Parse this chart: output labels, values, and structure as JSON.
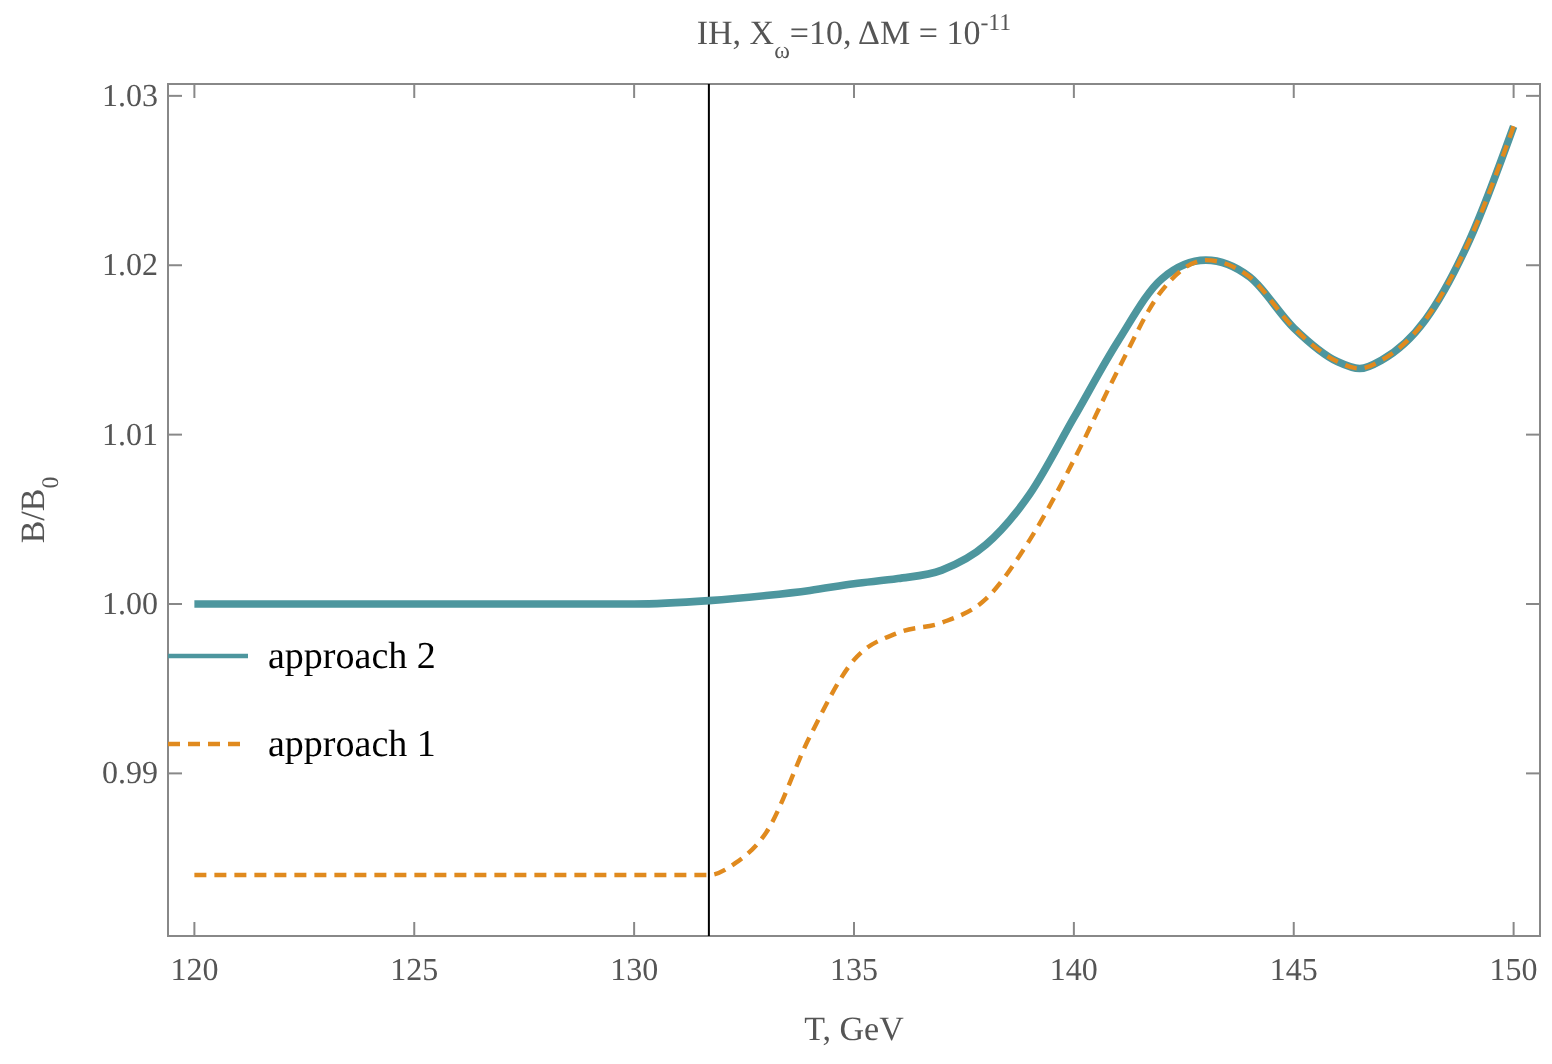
{
  "chart_data": {
    "type": "line",
    "title": "IH, X$_{ω}$=10, ΔM = 10$^{-11}$",
    "xlabel": "T, GeV",
    "ylabel": "B/B$_{0}$",
    "xlim": [
      119.4,
      150.6
    ],
    "ylim": [
      0.9804,
      1.0307
    ],
    "xticks": [
      120,
      125,
      130,
      135,
      140,
      145,
      150
    ],
    "yticks": [
      {
        "value": 0.99,
        "label": "0.99"
      },
      {
        "value": 1,
        "label": "1.00"
      },
      {
        "value": 1.01,
        "label": "1.01"
      },
      {
        "value": 1.02,
        "label": "1.02"
      },
      {
        "value": 1.03,
        "label": "1.03"
      }
    ],
    "legend": "bottom left",
    "grid": false,
    "ref_lines": [
      {
        "axis": "x",
        "value": 131.7,
        "color": "#000000",
        "line_style": "solid"
      }
    ],
    "series": [
      {
        "name": "approach 2",
        "color": "#4d969e",
        "line_style": "solid",
        "x": [
          120,
          125,
          130,
          131.7,
          133,
          134,
          135,
          136,
          137,
          138,
          139,
          140,
          141,
          142,
          143,
          144,
          145,
          146,
          146.5,
          147,
          148,
          149,
          150
        ],
        "values": [
          1.0,
          1.0,
          1.0,
          1.0002,
          1.0005,
          1.0008,
          1.0012,
          1.0015,
          1.002,
          1.0035,
          1.0065,
          1.011,
          1.0155,
          1.0192,
          1.0203,
          1.0193,
          1.0163,
          1.0143,
          1.0139,
          1.0144,
          1.0168,
          1.0215,
          1.0282
        ]
      },
      {
        "name": "approach 1",
        "color": "#e08a1e",
        "line_style": "dashed",
        "x": [
          120,
          125,
          130,
          131.7,
          132.3,
          133,
          134,
          135,
          136,
          137,
          138,
          139,
          140,
          141,
          142,
          143,
          144,
          145,
          146,
          146.5,
          147,
          148,
          149,
          150
        ],
        "values": [
          0.984,
          0.984,
          0.984,
          0.984,
          0.9847,
          0.9865,
          0.9922,
          0.9967,
          0.9983,
          0.9989,
          1.0003,
          1.0038,
          1.0085,
          1.0138,
          1.0185,
          1.0203,
          1.0193,
          1.0163,
          1.0143,
          1.0139,
          1.0144,
          1.0168,
          1.0215,
          1.0282
        ]
      }
    ]
  }
}
